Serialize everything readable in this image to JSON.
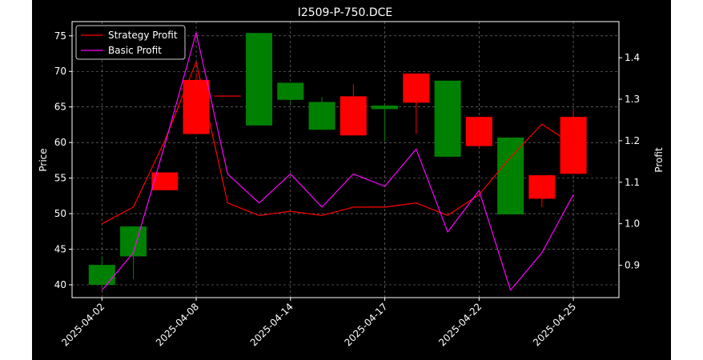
{
  "chart_data": {
    "type": "candlestick",
    "title": "I2509-P-750.DCE",
    "ylabel_left": "Price",
    "ylabel_right": "Profit",
    "xlabel": "",
    "ylim_left": [
      38.2,
      77.0
    ],
    "ylim_right": [
      0.822,
      1.487
    ],
    "yticks_left": [
      40,
      45,
      50,
      55,
      60,
      65,
      70,
      75
    ],
    "yticks_right": [
      0.9,
      1.0,
      1.1,
      1.2,
      1.3,
      1.4
    ],
    "grid": true,
    "legend_position": "upper-left",
    "x_index_range": [
      -0.95,
      16.45
    ],
    "x_tick_labels": [
      {
        "index": 0,
        "label": "2025-04-02"
      },
      {
        "index": 3,
        "label": "2025-04-08"
      },
      {
        "index": 6,
        "label": "2025-04-14"
      },
      {
        "index": 9,
        "label": "2025-04-17"
      },
      {
        "index": 12,
        "label": "2025-04-22"
      },
      {
        "index": 15,
        "label": "2025-04-25"
      }
    ],
    "candles": [
      {
        "i": 0,
        "open": 40.0,
        "close": 42.8,
        "high": 44.0,
        "low": 39.5
      },
      {
        "i": 1,
        "open": 44.0,
        "close": 48.2,
        "high": 48.2,
        "low": 40.8
      },
      {
        "i": 2,
        "open": 55.8,
        "close": 53.3,
        "high": 55.8,
        "low": 53.3
      },
      {
        "i": 3,
        "open": 68.8,
        "close": 61.2,
        "high": 69.8,
        "low": 61.2
      },
      {
        "i": 4,
        "open": 66.6,
        "close": 66.5,
        "high": 66.6,
        "low": 66.5
      },
      {
        "i": 5,
        "open": 62.4,
        "close": 75.4,
        "high": 75.4,
        "low": 62.4
      },
      {
        "i": 6,
        "open": 66.0,
        "close": 68.4,
        "high": 68.4,
        "low": 65.4
      },
      {
        "i": 7,
        "open": 61.8,
        "close": 65.7,
        "high": 66.4,
        "low": 61.8
      },
      {
        "i": 8,
        "open": 66.5,
        "close": 61.0,
        "high": 68.2,
        "low": 61.0
      },
      {
        "i": 9,
        "open": 64.7,
        "close": 65.2,
        "high": 65.2,
        "low": 60.2
      },
      {
        "i": 10,
        "open": 69.7,
        "close": 65.6,
        "high": 69.7,
        "low": 61.2
      },
      {
        "i": 11,
        "open": 58.0,
        "close": 68.7,
        "high": 68.7,
        "low": 58.0
      },
      {
        "i": 12,
        "open": 63.6,
        "close": 59.5,
        "high": 63.6,
        "low": 59.3
      },
      {
        "i": 13,
        "open": 49.9,
        "close": 60.7,
        "high": 60.7,
        "low": 49.9
      },
      {
        "i": 14,
        "open": 55.4,
        "close": 52.1,
        "high": 55.4,
        "low": 50.9
      },
      {
        "i": 15,
        "open": 63.6,
        "close": 55.6,
        "high": 64.6,
        "low": 55.6
      }
    ],
    "series": [
      {
        "name": "Strategy Profit",
        "color": "#ff0000",
        "axis": "right",
        "values": [
          1.0,
          1.04,
          1.2,
          1.39,
          1.05,
          1.02,
          1.03,
          1.02,
          1.04,
          1.04,
          1.05,
          1.02,
          1.07,
          1.16,
          1.24,
          1.19
        ]
      },
      {
        "name": "Basic Profit",
        "color": "#ff00ff",
        "axis": "right",
        "values": [
          0.84,
          0.93,
          1.19,
          1.46,
          1.12,
          1.05,
          1.12,
          1.04,
          1.12,
          1.09,
          1.18,
          0.98,
          1.08,
          0.84,
          0.93,
          1.07
        ]
      }
    ],
    "candle_colors": {
      "up": "#008000",
      "down": "#ff0000"
    }
  },
  "style": {
    "background": "#000000",
    "page_background": "#ffffff",
    "foreground": "#ffffff",
    "grid_color": "#888888"
  }
}
